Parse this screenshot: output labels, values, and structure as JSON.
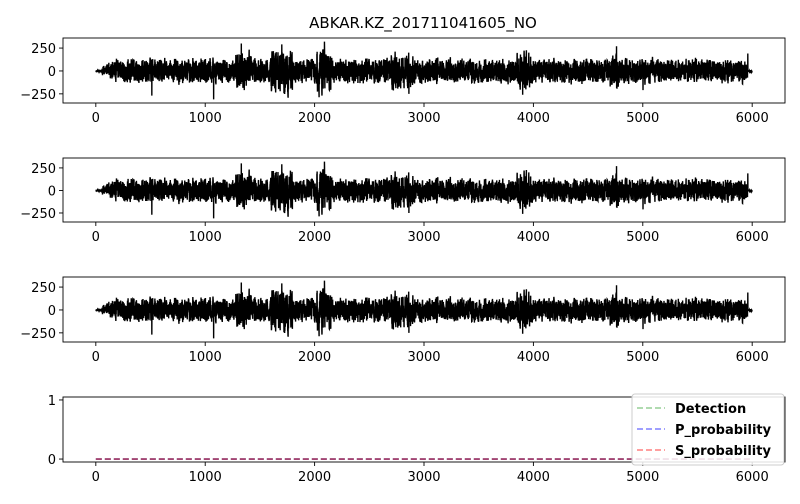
{
  "figure": {
    "title": "ABKAR.KZ_201711041605_NO"
  },
  "chart_data": [
    {
      "type": "line",
      "title": "ABKAR.KZ_201711041605_NO",
      "xlabel": "",
      "ylabel": "",
      "xlim": [
        -300,
        6300
      ],
      "ylim": [
        -350,
        360
      ],
      "xticks": [
        0,
        1000,
        2000,
        3000,
        4000,
        5000,
        6000
      ],
      "yticks": [
        -250,
        0,
        250
      ],
      "legend": "none",
      "grid": false,
      "series": [
        {
          "color": "#000000",
          "n_samples": 6000,
          "amplitude": 120,
          "peak_max": 320,
          "peak_min": -310
        }
      ]
    },
    {
      "type": "line",
      "title": "",
      "xlabel": "",
      "ylabel": "",
      "xlim": [
        -300,
        6300
      ],
      "ylim": [
        -350,
        360
      ],
      "xticks": [
        0,
        1000,
        2000,
        3000,
        4000,
        5000,
        6000
      ],
      "yticks": [
        -250,
        0,
        250
      ],
      "legend": "none",
      "grid": false,
      "series": [
        {
          "color": "#000000",
          "n_samples": 6000,
          "amplitude": 120,
          "peak_max": 320,
          "peak_min": -310
        }
      ]
    },
    {
      "type": "line",
      "title": "",
      "xlabel": "",
      "ylabel": "",
      "xlim": [
        -300,
        6300
      ],
      "ylim": [
        -350,
        360
      ],
      "xticks": [
        0,
        1000,
        2000,
        3000,
        4000,
        5000,
        6000
      ],
      "yticks": [
        -250,
        0,
        250
      ],
      "legend": "none",
      "grid": false,
      "series": [
        {
          "color": "#000000",
          "n_samples": 6000,
          "amplitude": 120,
          "peak_max": 320,
          "peak_min": -310
        }
      ]
    },
    {
      "type": "line",
      "title": "",
      "xlabel": "",
      "ylabel": "",
      "xlim": [
        -300,
        6300
      ],
      "ylim": [
        -0.05,
        1.05
      ],
      "xticks": [
        0,
        1000,
        2000,
        3000,
        4000,
        5000,
        6000
      ],
      "yticks": [
        0,
        1
      ],
      "legend": "top-right",
      "grid": false,
      "series": [
        {
          "name": "Detection",
          "color": "#2ca02c",
          "style": "dashed",
          "alpha": 0.5,
          "x": [
            0,
            6000
          ],
          "y": [
            0,
            0
          ]
        },
        {
          "name": "P_probability",
          "color": "#0000ff",
          "style": "dashed",
          "alpha": 0.5,
          "x": [
            0,
            6000
          ],
          "y": [
            0,
            0
          ]
        },
        {
          "name": "S_probability",
          "color": "#ff0000",
          "style": "dashed",
          "alpha": 0.5,
          "x": [
            0,
            6000
          ],
          "y": [
            0,
            0
          ]
        }
      ]
    }
  ]
}
